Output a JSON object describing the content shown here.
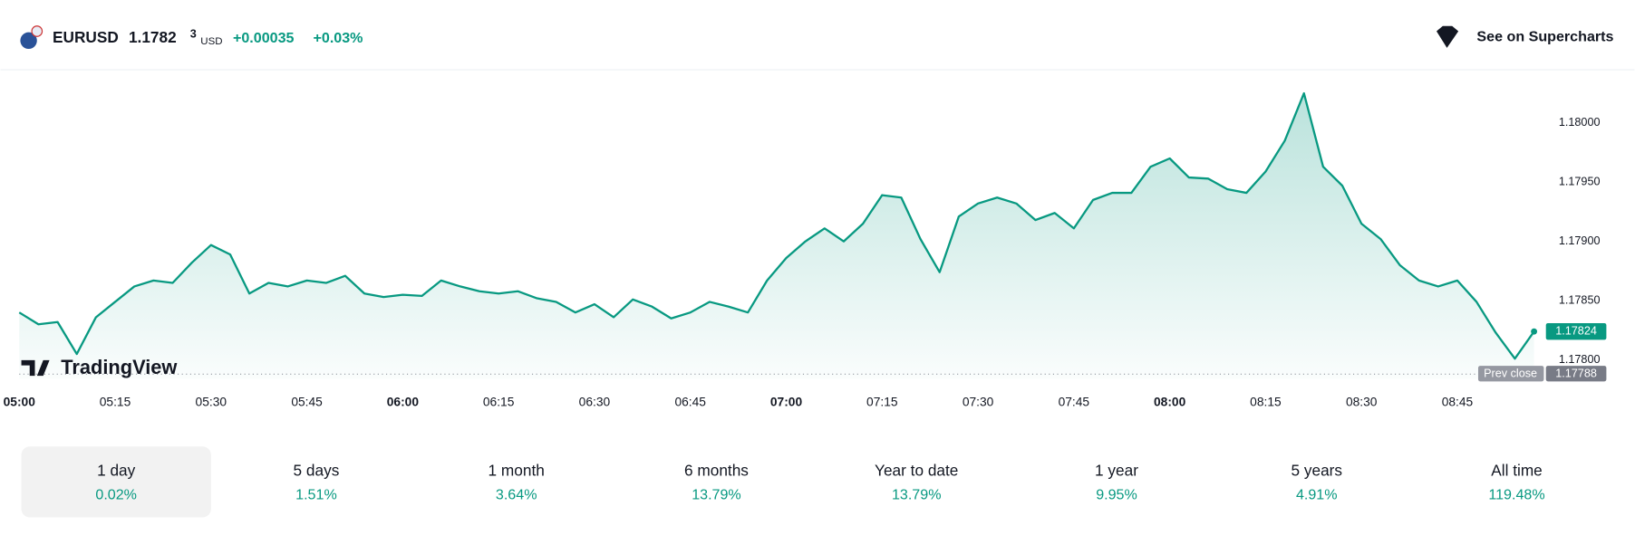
{
  "header": {
    "symbol": "EURUSD",
    "price_main": "1.1782",
    "price_last_digit": "3",
    "currency": "USD",
    "change": "+0.00035",
    "change_percent": "+0.03%",
    "action": "See on Supercharts"
  },
  "watermark": "TradingView",
  "chart_data": {
    "type": "area",
    "color": "#089981",
    "x": [
      "05:00",
      "05:03",
      "05:06",
      "05:09",
      "05:12",
      "05:15",
      "05:18",
      "05:21",
      "05:24",
      "05:27",
      "05:30",
      "05:33",
      "05:36",
      "05:39",
      "05:42",
      "05:45",
      "05:48",
      "05:51",
      "05:54",
      "05:57",
      "06:00",
      "06:03",
      "06:06",
      "06:09",
      "06:12",
      "06:15",
      "06:18",
      "06:21",
      "06:24",
      "06:27",
      "06:30",
      "06:33",
      "06:36",
      "06:39",
      "06:42",
      "06:45",
      "06:48",
      "06:51",
      "06:54",
      "06:57",
      "07:00",
      "07:03",
      "07:06",
      "07:09",
      "07:12",
      "07:15",
      "07:18",
      "07:21",
      "07:24",
      "07:27",
      "07:30",
      "07:33",
      "07:36",
      "07:39",
      "07:42",
      "07:45",
      "07:48",
      "07:51",
      "07:54",
      "07:57",
      "08:00",
      "08:03",
      "08:06",
      "08:09",
      "08:12",
      "08:15",
      "08:18",
      "08:21",
      "08:24",
      "08:27",
      "08:30",
      "08:33",
      "08:36",
      "08:39",
      "08:42",
      "08:45",
      "08:48",
      "08:51",
      "08:54",
      "08:57"
    ],
    "values": [
      1.1784,
      1.1783,
      1.17832,
      1.17805,
      1.17836,
      1.17849,
      1.17862,
      1.17867,
      1.17865,
      1.17882,
      1.17897,
      1.17889,
      1.17856,
      1.17865,
      1.17862,
      1.17867,
      1.17865,
      1.17871,
      1.17856,
      1.17853,
      1.17855,
      1.17854,
      1.17867,
      1.17862,
      1.17858,
      1.17856,
      1.17858,
      1.17852,
      1.17849,
      1.1784,
      1.17847,
      1.17836,
      1.17851,
      1.17845,
      1.17835,
      1.1784,
      1.17849,
      1.17845,
      1.1784,
      1.17867,
      1.17886,
      1.179,
      1.17911,
      1.179,
      1.17915,
      1.17939,
      1.17937,
      1.17902,
      1.17874,
      1.17921,
      1.17932,
      1.17937,
      1.17932,
      1.17918,
      1.17924,
      1.17911,
      1.17935,
      1.17941,
      1.17941,
      1.17963,
      1.1797,
      1.17954,
      1.17953,
      1.17944,
      1.17941,
      1.17959,
      1.17985,
      1.18025,
      1.17963,
      1.17947,
      1.17915,
      1.17902,
      1.1788,
      1.17867,
      1.17862,
      1.17867,
      1.17849,
      1.17823,
      1.17801,
      1.17824
    ],
    "xlim": [
      "05:00",
      "09:00"
    ],
    "xticks": [
      "05:00",
      "05:15",
      "05:30",
      "05:45",
      "06:00",
      "06:15",
      "06:30",
      "06:45",
      "07:00",
      "07:15",
      "07:30",
      "07:45",
      "08:00",
      "08:15",
      "08:30",
      "08:45"
    ],
    "ylim": [
      1.17784,
      1.18044
    ],
    "yticks": [
      {
        "value": 1.178,
        "label": "1.17800"
      },
      {
        "value": 1.1785,
        "label": "1.17850"
      },
      {
        "value": 1.179,
        "label": "1.17900"
      },
      {
        "value": 1.1795,
        "label": "1.17950"
      },
      {
        "value": 1.18,
        "label": "1.18000"
      }
    ],
    "prev_close_label": "Prev close",
    "prev_close": 1.17788
  },
  "periods": [
    {
      "label": "1 day",
      "change": "0.02%"
    },
    {
      "label": "5 days",
      "change": "1.51%"
    },
    {
      "label": "1 month",
      "change": "3.64%"
    },
    {
      "label": "6 months",
      "change": "13.79%"
    },
    {
      "label": "Year to date",
      "change": "13.79%"
    },
    {
      "label": "1 year",
      "change": "9.95%"
    },
    {
      "label": "5 years",
      "change": "4.91%"
    },
    {
      "label": "All time",
      "change": "119.48%"
    }
  ]
}
